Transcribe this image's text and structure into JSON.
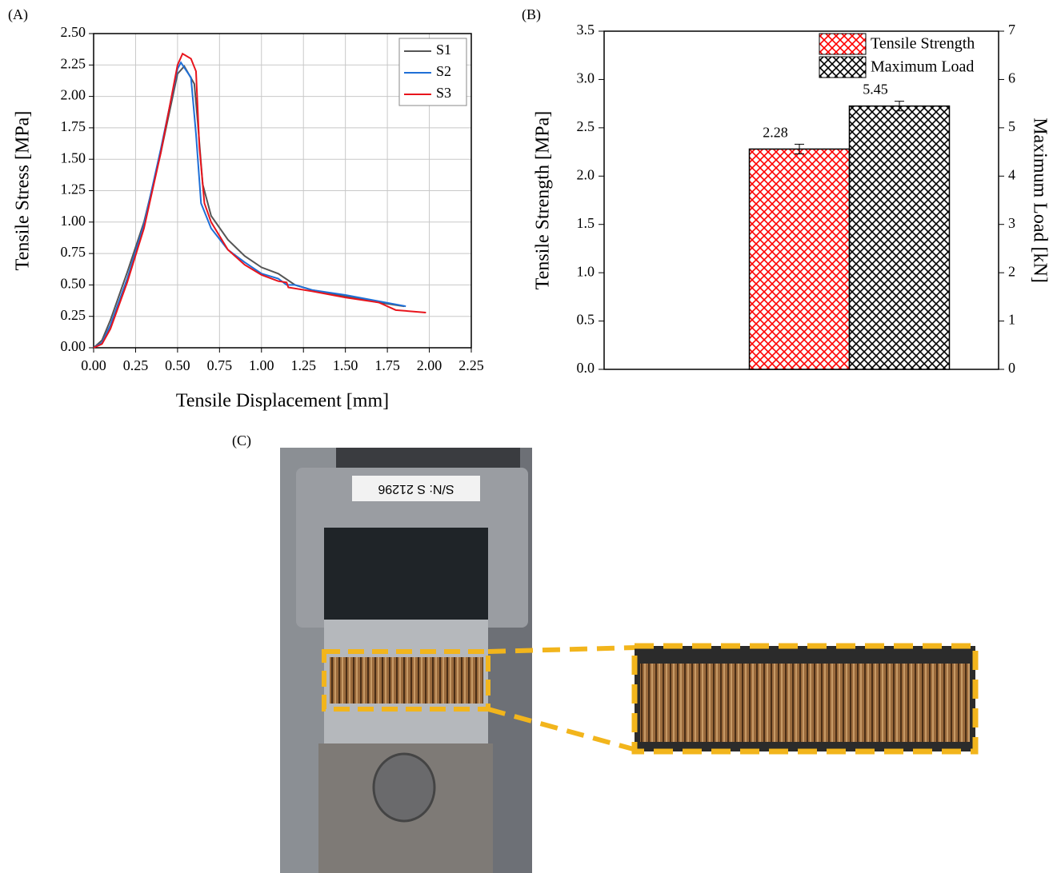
{
  "chart_data": [
    {
      "type": "line",
      "panel_label": "(A)",
      "x_label": "Tensile Displacement [mm]",
      "y_label": "Tensile Stress [MPa]",
      "xlim": [
        0,
        2.25
      ],
      "xticks": [
        {
          "value": 0,
          "label": "0.00"
        },
        {
          "value": 0.25,
          "label": "0.25"
        },
        {
          "value": 0.5,
          "label": "0.50"
        },
        {
          "value": 0.75,
          "label": "0.75"
        },
        {
          "value": 1,
          "label": "1.00"
        },
        {
          "value": 1.25,
          "label": "1.25"
        },
        {
          "value": 1.5,
          "label": "1.50"
        },
        {
          "value": 1.75,
          "label": "1.75"
        },
        {
          "value": 2,
          "label": "2.00"
        },
        {
          "value": 2.25,
          "label": "2.25"
        }
      ],
      "ylim": [
        0,
        2.5
      ],
      "yticks": [
        {
          "value": 0,
          "label": "0.00"
        },
        {
          "value": 0.25,
          "label": "0.25"
        },
        {
          "value": 0.5,
          "label": "0.50"
        },
        {
          "value": 0.75,
          "label": "0.75"
        },
        {
          "value": 1,
          "label": "1.00"
        },
        {
          "value": 1.25,
          "label": "1.25"
        },
        {
          "value": 1.5,
          "label": "1.50"
        },
        {
          "value": 1.75,
          "label": "1.75"
        },
        {
          "value": 2,
          "label": "2.00"
        },
        {
          "value": 2.25,
          "label": "2.25"
        },
        {
          "value": 2.5,
          "label": "2.50"
        }
      ],
      "grid": true,
      "legend": "upper right",
      "series": [
        {
          "name": "S1",
          "color": "#555555",
          "x": [
            0,
            0.05,
            0.1,
            0.2,
            0.3,
            0.4,
            0.5,
            0.54,
            0.6,
            0.62,
            0.65,
            0.7,
            0.8,
            0.9,
            1.0,
            1.1,
            1.2,
            1.3,
            1.5,
            1.7,
            1.85
          ],
          "values": [
            0,
            0.06,
            0.22,
            0.6,
            1.0,
            1.55,
            2.18,
            2.24,
            2.1,
            1.8,
            1.3,
            1.05,
            0.86,
            0.73,
            0.64,
            0.59,
            0.5,
            0.46,
            0.41,
            0.36,
            0.33
          ]
        },
        {
          "name": "S2",
          "color": "#1f6fd6",
          "x": [
            0,
            0.05,
            0.1,
            0.2,
            0.3,
            0.4,
            0.5,
            0.52,
            0.58,
            0.61,
            0.64,
            0.7,
            0.8,
            0.9,
            1.0,
            1.1,
            1.15,
            1.2,
            1.3,
            1.5,
            1.7,
            1.86
          ],
          "values": [
            0,
            0.04,
            0.18,
            0.55,
            0.98,
            1.58,
            2.22,
            2.27,
            2.15,
            1.7,
            1.15,
            0.95,
            0.78,
            0.68,
            0.59,
            0.55,
            0.5,
            0.5,
            0.46,
            0.42,
            0.37,
            0.33
          ]
        },
        {
          "name": "S3",
          "color": "#e8141c",
          "x": [
            0,
            0.05,
            0.1,
            0.2,
            0.3,
            0.4,
            0.5,
            0.53,
            0.58,
            0.61,
            0.63,
            0.66,
            0.7,
            0.8,
            0.9,
            1.0,
            1.1,
            1.15,
            1.16,
            1.3,
            1.5,
            1.7,
            1.8,
            1.98
          ],
          "values": [
            0,
            0.03,
            0.15,
            0.52,
            0.95,
            1.55,
            2.25,
            2.34,
            2.3,
            2.2,
            1.6,
            1.15,
            1.0,
            0.78,
            0.66,
            0.58,
            0.53,
            0.52,
            0.48,
            0.45,
            0.4,
            0.36,
            0.3,
            0.28
          ]
        }
      ]
    },
    {
      "type": "bar",
      "panel_label": "(B)",
      "y_label": "Tensile Strength [MPa]",
      "y2_label": "Maximum Load [kN]",
      "categories": [
        null
      ],
      "ylim": [
        0,
        3.5
      ],
      "yticks": [
        {
          "value": 0,
          "label": "0.0"
        },
        {
          "value": 0.5,
          "label": "0.5"
        },
        {
          "value": 1,
          "label": "1.0"
        },
        {
          "value": 1.5,
          "label": "1.5"
        },
        {
          "value": 2,
          "label": "2.0"
        },
        {
          "value": 2.5,
          "label": "2.5"
        },
        {
          "value": 3,
          "label": "3.0"
        },
        {
          "value": 3.5,
          "label": "3.5"
        }
      ],
      "y2lim": [
        0,
        7
      ],
      "y2ticks": [
        0,
        1,
        2,
        3,
        4,
        5,
        6,
        7
      ],
      "legend": "upper right",
      "series": [
        {
          "name": "Tensile Strength",
          "color": "#ff0000",
          "values": [
            2.28
          ],
          "errors": [
            0.05
          ]
        },
        {
          "name": "Maximum Load",
          "color": "#000000",
          "axis": "y2",
          "values": [
            5.45
          ],
          "errors": [
            0.1
          ]
        }
      ]
    }
  ],
  "photo": {
    "panel_label": "(C)",
    "plate_text": "S/N: S 21296"
  }
}
